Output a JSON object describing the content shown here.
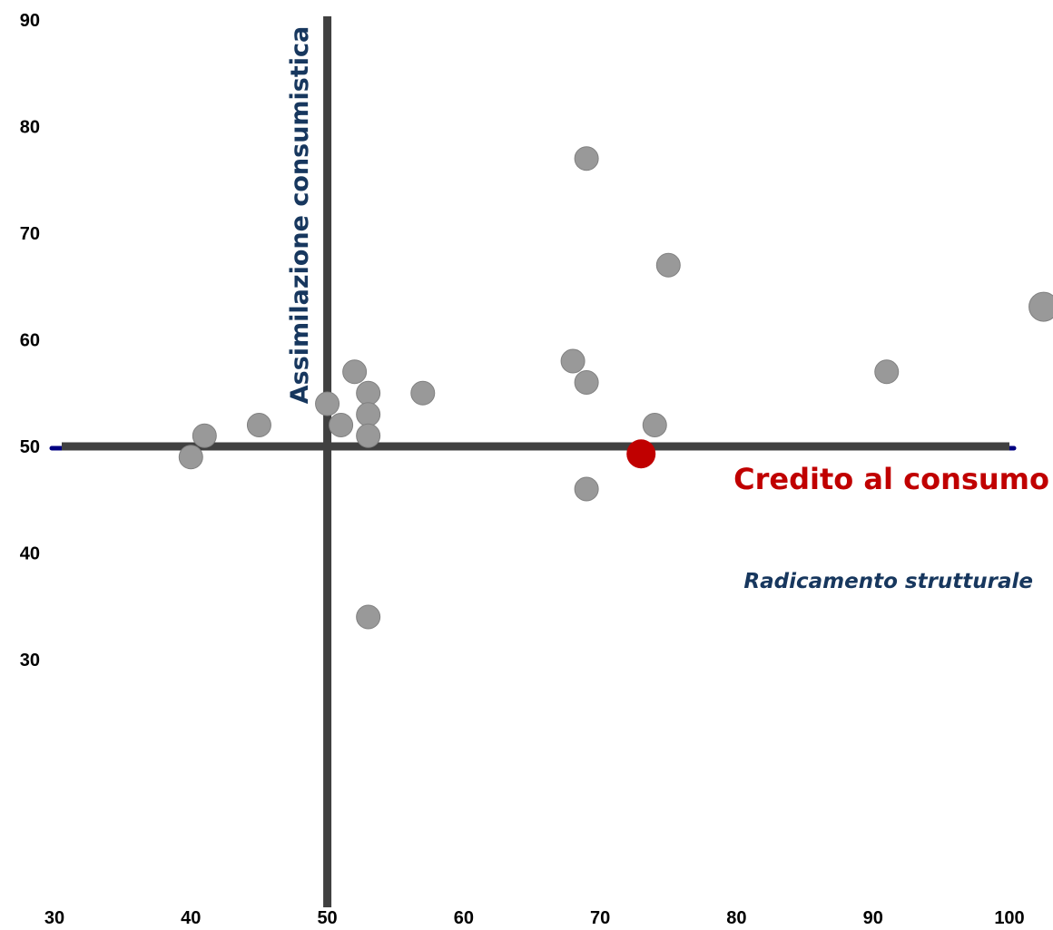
{
  "chart_data": {
    "type": "scatter",
    "title": "",
    "xlabel": "Radicamento strutturale",
    "ylabel": "Assimilazione consumistica",
    "xlim": [
      30,
      100
    ],
    "ylim": [
      30,
      90
    ],
    "x_ticks": [
      "30",
      "40",
      "50",
      "60",
      "70",
      "80",
      "90",
      "100"
    ],
    "y_ticks": [
      "30",
      "40",
      "50",
      "60",
      "70",
      "80",
      "90"
    ],
    "reference_lines": {
      "x": 50,
      "y": 50
    },
    "grid": false,
    "series": [
      {
        "points": [
          {
            "x": 40,
            "y": 49
          },
          {
            "x": 41,
            "y": 51
          },
          {
            "x": 45,
            "y": 52
          },
          {
            "x": 50,
            "y": 54
          },
          {
            "x": 51,
            "y": 52
          },
          {
            "x": 52,
            "y": 57
          },
          {
            "x": 53,
            "y": 55
          },
          {
            "x": 53,
            "y": 53
          },
          {
            "x": 53,
            "y": 51
          },
          {
            "x": 53,
            "y": 34
          },
          {
            "x": 57,
            "y": 55
          },
          {
            "x": 68,
            "y": 58
          },
          {
            "x": 69,
            "y": 77
          },
          {
            "x": 69,
            "y": 56
          },
          {
            "x": 69,
            "y": 46
          },
          {
            "x": 74,
            "y": 52
          },
          {
            "x": 75,
            "y": 67
          },
          {
            "x": 91,
            "y": 57
          },
          {
            "x": 102.5,
            "y": 63.1
          }
        ]
      },
      {
        "name": "Credito al consumo",
        "highlight": true,
        "points": [
          {
            "x": 73,
            "y": 49.3
          }
        ]
      }
    ],
    "colors": {
      "point": "#999999",
      "point_edge": "#808080",
      "highlight": "#c00000",
      "reference_line": "#404040",
      "baseline": "#000080",
      "axis_title": "#17375e"
    }
  }
}
